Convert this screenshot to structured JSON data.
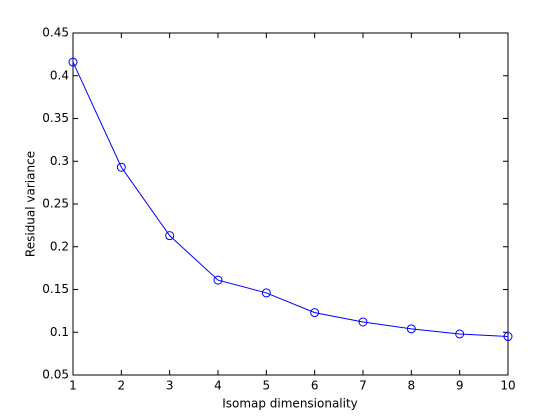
{
  "chart_data": {
    "type": "line",
    "x_label": "Isomap dimensionality",
    "y_label": "Residual variance",
    "x": [
      1,
      2,
      3,
      4,
      5,
      6,
      7,
      8,
      9,
      10
    ],
    "series": [
      {
        "color": "#0000ff",
        "marker": "circle",
        "values": [
          0.416,
          0.293,
          0.213,
          0.161,
          0.146,
          0.123,
          0.112,
          0.104,
          0.098,
          0.095
        ]
      }
    ],
    "xlim": [
      1,
      10
    ],
    "xticks": [
      1,
      2,
      3,
      4,
      5,
      6,
      7,
      8,
      9,
      10
    ],
    "ylim": [
      0.05,
      0.45
    ],
    "yticks": [
      0.05,
      0.1,
      0.15,
      0.2,
      0.25,
      0.3,
      0.35,
      0.4,
      0.45
    ],
    "grid": false
  }
}
